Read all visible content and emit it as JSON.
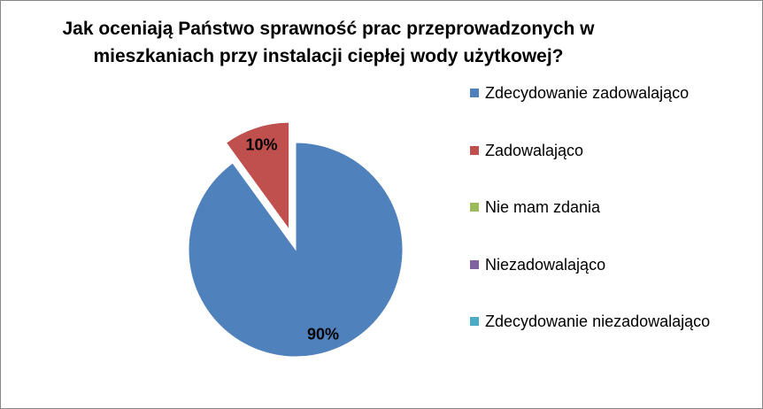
{
  "chart_data": {
    "type": "pie",
    "title": "Jak oceniają Państwo sprawność prac przeprowadzonych w mieszkaniach przy instalacji ciepłej wody użytkowej?",
    "categories": [
      "Zdecydowanie zadowalająco",
      "Zadowalająco",
      "Nie mam zdania",
      "Niezadowalająco",
      "Zdecydowanie niezadowalająco"
    ],
    "values": [
      90,
      10,
      0,
      0,
      0
    ],
    "data_labels": [
      "90%",
      "10%",
      "",
      "",
      ""
    ],
    "colors": [
      "#4F81BD",
      "#C0504D",
      "#9BBB59",
      "#8064A2",
      "#4BACC6"
    ],
    "exploded": [
      false,
      true,
      false,
      false,
      false
    ],
    "legend_position": "right"
  }
}
